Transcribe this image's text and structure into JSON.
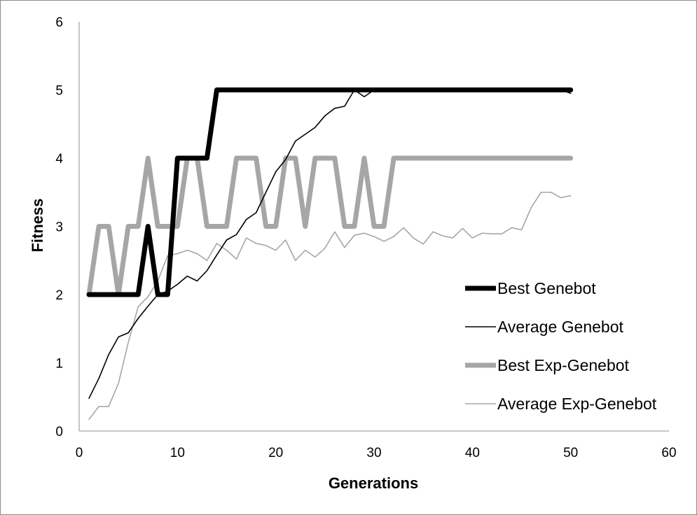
{
  "chart_data": {
    "type": "line",
    "xlabel": "Generations",
    "ylabel": "Fitness",
    "xlim": [
      0,
      60
    ],
    "ylim": [
      0,
      6
    ],
    "xticks": [
      0,
      10,
      20,
      30,
      40,
      50,
      60
    ],
    "yticks": [
      0,
      1,
      2,
      3,
      4,
      5,
      6
    ],
    "grid": false,
    "legend_position": "right",
    "x": [
      1,
      2,
      3,
      4,
      5,
      6,
      7,
      8,
      9,
      10,
      11,
      12,
      13,
      14,
      15,
      16,
      17,
      18,
      19,
      20,
      21,
      22,
      23,
      24,
      25,
      26,
      27,
      28,
      29,
      30,
      31,
      32,
      33,
      34,
      35,
      36,
      37,
      38,
      39,
      40,
      41,
      42,
      43,
      44,
      45,
      46,
      47,
      48,
      49,
      50
    ],
    "series": [
      {
        "name": "Best Genebot",
        "color": "#000000",
        "line_width": "thick",
        "values": [
          2,
          2,
          2,
          2,
          2,
          2,
          3,
          2,
          2,
          4,
          4,
          4,
          4,
          5,
          5,
          5,
          5,
          5,
          5,
          5,
          5,
          5,
          5,
          5,
          5,
          5,
          5,
          5,
          5,
          5,
          5,
          5,
          5,
          5,
          5,
          5,
          5,
          5,
          5,
          5,
          5,
          5,
          5,
          5,
          5,
          5,
          5,
          5,
          5,
          5
        ]
      },
      {
        "name": "Average Genebot",
        "color": "#000000",
        "line_width": "thin",
        "values": [
          0.48,
          0.77,
          1.12,
          1.38,
          1.44,
          1.65,
          1.83,
          2.0,
          2.05,
          2.15,
          2.27,
          2.2,
          2.35,
          2.58,
          2.8,
          2.88,
          3.1,
          3.2,
          3.5,
          3.8,
          3.98,
          4.25,
          4.35,
          4.45,
          4.62,
          4.73,
          4.76,
          5.0,
          4.9,
          5.0,
          5.0,
          5.0,
          5.0,
          5.0,
          5.0,
          5.0,
          5.0,
          5.0,
          5.0,
          5.0,
          5.0,
          5.0,
          5.0,
          5.0,
          5.0,
          5.0,
          5.0,
          5.0,
          5.0,
          4.95
        ]
      },
      {
        "name": "Best Exp-Genebot",
        "color": "#a6a6a6",
        "line_width": "thick",
        "values": [
          2,
          3,
          3,
          2,
          3,
          3,
          4,
          3,
          3,
          3,
          4,
          4,
          3,
          3,
          3,
          4,
          4,
          4,
          3,
          3,
          4,
          4,
          3,
          4,
          4,
          4,
          3,
          3,
          4,
          3,
          3,
          4,
          4,
          4,
          4,
          4,
          4,
          4,
          4,
          4,
          4,
          4,
          4,
          4,
          4,
          4,
          4,
          4,
          4,
          4
        ]
      },
      {
        "name": "Average Exp-Genebot",
        "color": "#a6a6a6",
        "line_width": "thin",
        "values": [
          0.17,
          0.36,
          0.36,
          0.7,
          1.3,
          1.82,
          1.97,
          2.2,
          2.57,
          2.6,
          2.65,
          2.6,
          2.5,
          2.75,
          2.65,
          2.52,
          2.83,
          2.75,
          2.72,
          2.65,
          2.8,
          2.5,
          2.65,
          2.55,
          2.68,
          2.92,
          2.69,
          2.87,
          2.9,
          2.85,
          2.78,
          2.85,
          2.98,
          2.83,
          2.74,
          2.92,
          2.86,
          2.83,
          2.97,
          2.83,
          2.9,
          2.89,
          2.89,
          2.98,
          2.95,
          3.28,
          3.5,
          3.5,
          3.42,
          3.45
        ]
      }
    ]
  }
}
